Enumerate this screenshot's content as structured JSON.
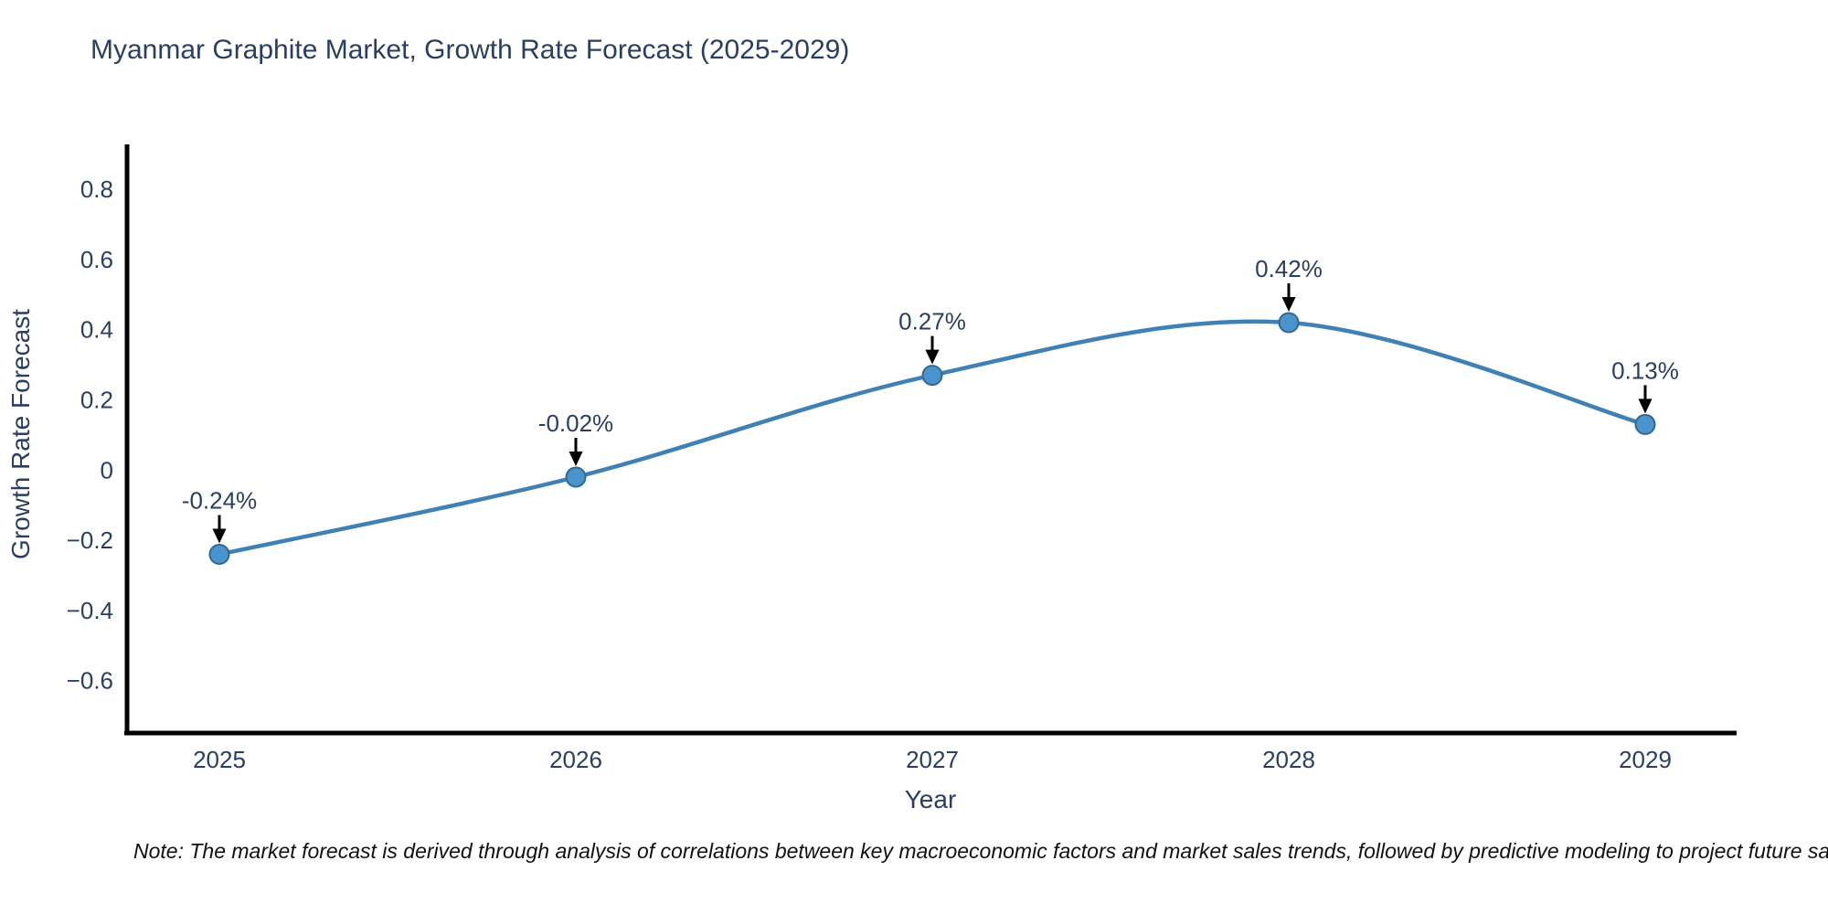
{
  "chart_data": {
    "type": "line",
    "title": "Myanmar Graphite Market, Growth Rate Forecast (2025-2029)",
    "xlabel": "Year",
    "ylabel": "Growth Rate Forecast",
    "categories": [
      "2025",
      "2026",
      "2027",
      "2028",
      "2029"
    ],
    "series": [
      {
        "name": "Growth Rate Forecast",
        "values": [
          -0.24,
          -0.02,
          0.27,
          0.42,
          0.13
        ],
        "point_labels": [
          "-0.24%",
          "-0.02%",
          "0.27%",
          "0.42%",
          "0.13%"
        ]
      }
    ],
    "y_tick_labels": [
      "0.8",
      "0.6",
      "0.4",
      "0.2",
      "0",
      "−0.2",
      "−0.4",
      "−0.6"
    ],
    "y_tick_values": [
      0.8,
      0.6,
      0.4,
      0.2,
      0,
      -0.2,
      -0.4,
      -0.6
    ],
    "ylim": [
      -0.74,
      0.92
    ],
    "grid": false,
    "legend_position": "none",
    "curve": "spline",
    "colors": {
      "line": "#3f80b5",
      "marker_fill": "#4a93cc",
      "marker_edge": "#33688f",
      "axis": "#000000",
      "text": "#2a3f5f",
      "annotation_arrow": "#000000"
    }
  },
  "footnote": "Note: The market forecast is derived through analysis of correlations between key macroeconomic factors and market sales trends, followed by predictive modeling to project future sales."
}
